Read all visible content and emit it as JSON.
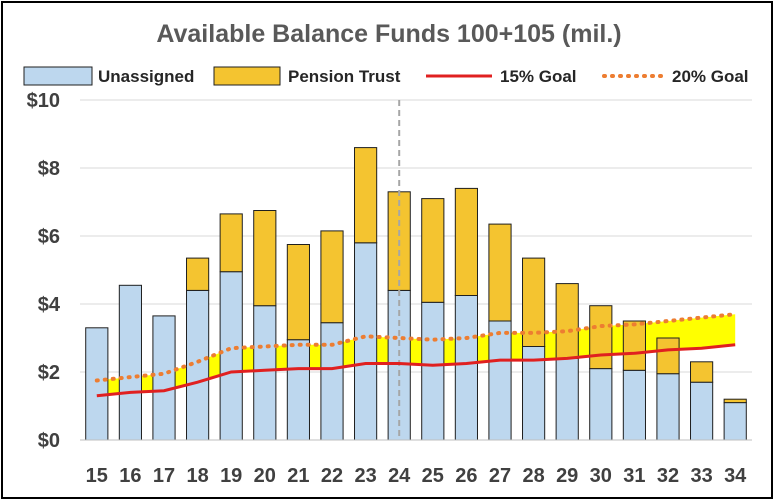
{
  "chart_data": {
    "type": "bar",
    "title": "Available Balance Funds 100+105 (mil.)",
    "categories": [
      "15",
      "16",
      "17",
      "18",
      "19",
      "20",
      "21",
      "22",
      "23",
      "24",
      "25",
      "26",
      "27",
      "28",
      "29",
      "30",
      "31",
      "32",
      "33",
      "34"
    ],
    "series": [
      {
        "name": "Unassigned",
        "kind": "stacked-bar",
        "color": "#bdd7ee",
        "values": [
          3.3,
          4.55,
          3.65,
          4.4,
          4.95,
          3.95,
          2.95,
          3.45,
          5.8,
          4.4,
          4.05,
          4.25,
          3.5,
          2.75,
          2.4,
          2.1,
          2.05,
          1.95,
          1.7,
          1.1
        ]
      },
      {
        "name": "Pension Trust",
        "kind": "stacked-bar",
        "color": "#f4c430",
        "values": [
          0,
          0,
          0,
          0.95,
          1.7,
          2.8,
          2.8,
          2.7,
          2.8,
          2.9,
          3.05,
          3.15,
          2.85,
          2.6,
          2.2,
          1.85,
          1.45,
          1.05,
          0.6,
          0.1
        ]
      },
      {
        "name": "15% Goal",
        "kind": "line",
        "color": "#e02020",
        "values": [
          1.3,
          1.4,
          1.45,
          1.7,
          2.0,
          2.05,
          2.1,
          2.1,
          2.25,
          2.25,
          2.2,
          2.25,
          2.35,
          2.35,
          2.4,
          2.5,
          2.55,
          2.65,
          2.7,
          2.8
        ]
      },
      {
        "name": "20% Goal",
        "kind": "dotted-line",
        "color": "#ed7d31",
        "values": [
          1.75,
          1.85,
          1.95,
          2.3,
          2.7,
          2.75,
          2.8,
          2.8,
          3.05,
          3.0,
          2.95,
          3.0,
          3.15,
          3.15,
          3.2,
          3.35,
          3.4,
          3.5,
          3.6,
          3.7
        ]
      }
    ],
    "goal_band_color": "#ffff00",
    "ylim": [
      0,
      10
    ],
    "yticks": [
      0,
      2,
      4,
      6,
      8,
      10
    ],
    "ytick_labels": [
      "$0",
      "$2",
      "$4",
      "$6",
      "$8",
      "$10"
    ],
    "marker_category": "24",
    "grid": "horizontal",
    "legend_position": "top"
  }
}
